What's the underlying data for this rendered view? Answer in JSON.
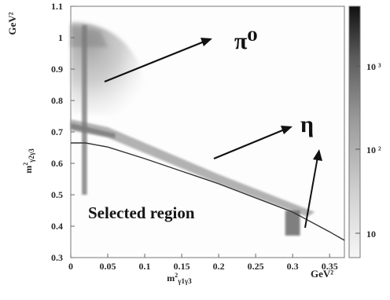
{
  "chart_data": {
    "type": "heatmap",
    "x_axis": {
      "range": [
        0,
        0.37
      ],
      "ticks": [
        "0",
        "0.05",
        "0.1",
        "0.15",
        "0.2",
        "0.25",
        "0.3",
        "0.35"
      ],
      "unit": "GeV²"
    },
    "y_axis": {
      "range": [
        0.3,
        1.1
      ],
      "ticks": [
        "0.3",
        "0.4",
        "0.5",
        "0.6",
        "0.7",
        "0.8",
        "0.9",
        "1",
        "1.1"
      ],
      "unit": "GeV²"
    },
    "colorbar": {
      "log_scale": true,
      "ticks": [
        "10",
        "10 ²",
        "10 ³"
      ]
    },
    "annotations": {
      "pi0": "π⁰",
      "eta": "η",
      "region": "Selected region"
    },
    "selection_cut": {
      "x": [
        0,
        0.02,
        0.05,
        0.1,
        0.15,
        0.2,
        0.25,
        0.3,
        0.35,
        0.37
      ],
      "y": [
        0.665,
        0.665,
        0.652,
        0.615,
        0.575,
        0.535,
        0.49,
        0.445,
        0.382,
        0.355
      ]
    },
    "density_regions": [
      {
        "name": "pi0-band",
        "x": [
          0,
          0.1
        ],
        "y": [
          0.75,
          1.05
        ]
      },
      {
        "name": "correlation-band",
        "x": [
          0,
          0.33
        ],
        "y": [
          0.43,
          0.74
        ]
      },
      {
        "name": "vertical-band",
        "x": [
          0.015,
          0.022
        ],
        "y": [
          0.5,
          1.04
        ]
      },
      {
        "name": "eta-spot",
        "x": [
          0.29,
          0.31
        ],
        "y": [
          0.37,
          0.45
        ]
      }
    ]
  }
}
